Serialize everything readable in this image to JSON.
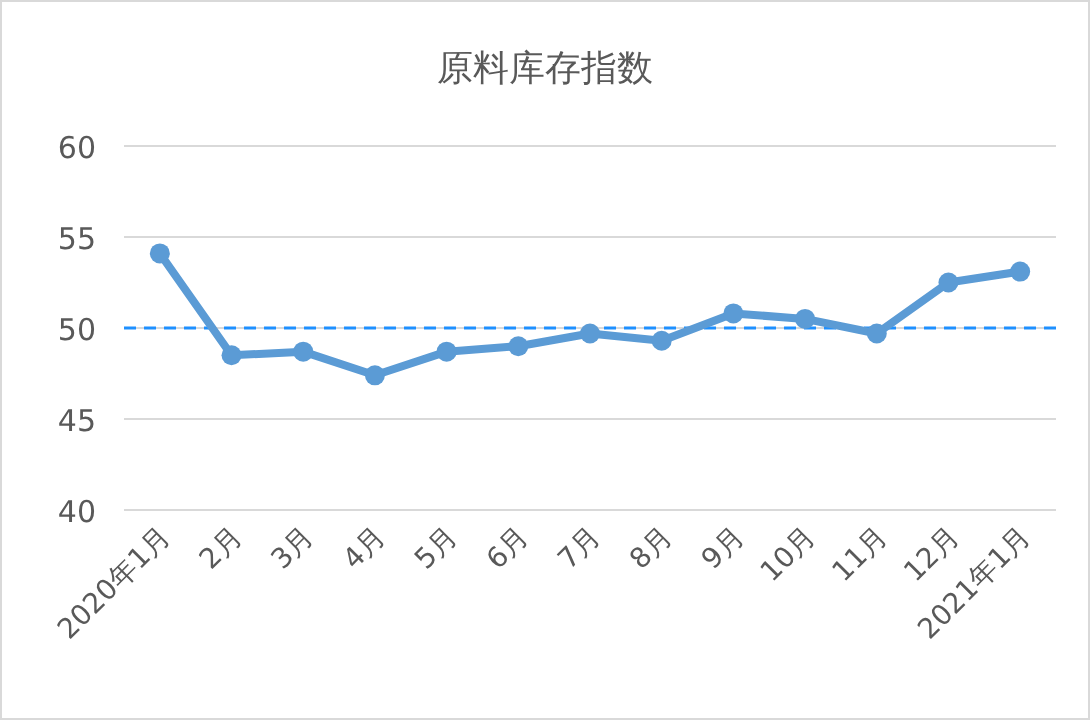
{
  "chart_data": {
    "type": "line",
    "title": "原料库存指数",
    "categories": [
      "2020年1月",
      "2月",
      "3月",
      "4月",
      "5月",
      "6月",
      "7月",
      "8月",
      "9月",
      "10月",
      "11月",
      "12月",
      "2021年1月"
    ],
    "series": [
      {
        "color": "#5b9bd5",
        "values": [
          54.1,
          48.5,
          48.7,
          47.4,
          48.7,
          49.0,
          49.7,
          49.3,
          50.8,
          50.5,
          49.7,
          52.5,
          53.1
        ]
      }
    ],
    "ylim": [
      40,
      60
    ],
    "yticks": [
      40,
      45,
      50,
      55,
      60
    ],
    "grid": "y",
    "marker": "circle",
    "line_style": "solid",
    "ref_lines": [
      {
        "axis": "y",
        "value": 50,
        "color": "#1e90ff",
        "line_style": "dashed"
      }
    ]
  }
}
